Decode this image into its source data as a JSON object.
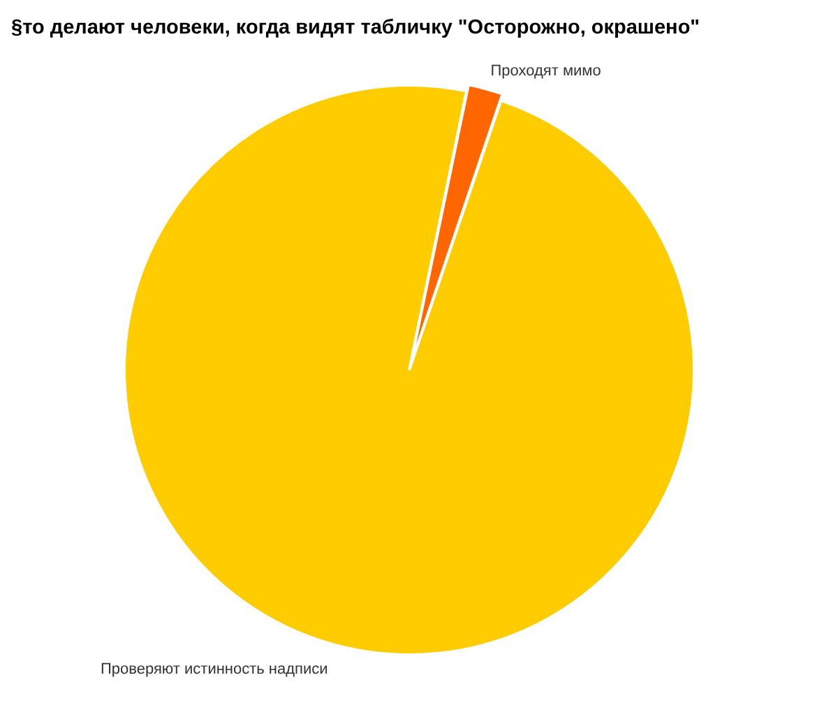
{
  "chart_data": {
    "type": "pie",
    "title": "§то делают человеки, когда видят табличку \"Осторожно, окрашено\"",
    "categories": [
      "Проходят мимо",
      "Проверяют истинность надписи"
    ],
    "values": [
      2,
      98
    ],
    "colors": [
      "#ff6600",
      "#ffcc00"
    ],
    "legend": false
  }
}
